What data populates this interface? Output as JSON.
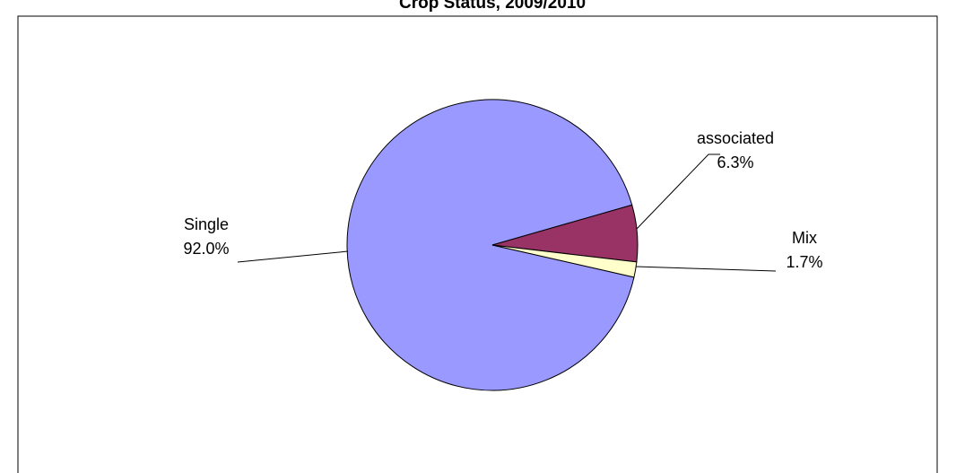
{
  "chart_data": {
    "type": "pie",
    "title": "Crop Status, 2009/2010",
    "categories": [
      "Single",
      "associated",
      "Mix"
    ],
    "values": [
      92.0,
      6.3,
      1.7
    ],
    "value_labels": [
      "92.0%",
      "6.3%",
      "1.7%"
    ],
    "colors": [
      "#9999ff",
      "#993366",
      "#ffffcc"
    ]
  }
}
